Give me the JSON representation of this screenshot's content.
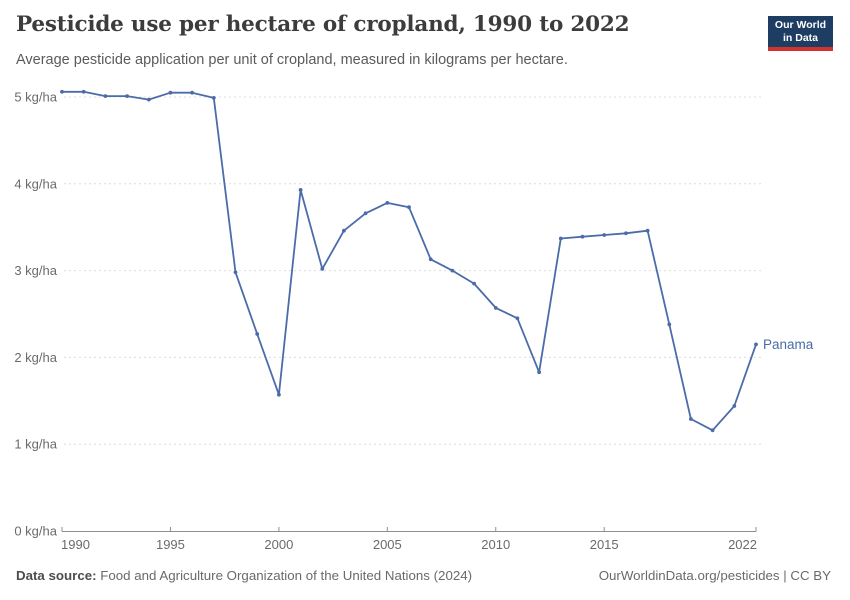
{
  "header": {
    "title": "Pesticide use per hectare of cropland, 1990 to 2022",
    "subtitle": "Average pesticide application per unit of cropland, measured in kilograms per hectare.",
    "logo": {
      "line1": "Our World",
      "line2": "in Data"
    }
  },
  "chart_data": {
    "type": "line",
    "title": "Pesticide use per hectare of cropland, 1990 to 2022",
    "xlabel": "",
    "ylabel": "kg/ha",
    "xlim": [
      1990,
      2022
    ],
    "ylim": [
      0,
      5
    ],
    "grid": "horizontal-dashed",
    "legend_position": "end-of-line-label",
    "x": [
      1990,
      1991,
      1992,
      1993,
      1994,
      1995,
      1996,
      1997,
      1998,
      1999,
      2000,
      2001,
      2002,
      2003,
      2004,
      2005,
      2006,
      2007,
      2008,
      2009,
      2010,
      2011,
      2012,
      2013,
      2014,
      2015,
      2016,
      2017,
      2018,
      2019,
      2020,
      2021,
      2022
    ],
    "series": [
      {
        "name": "Panama",
        "values": [
          5.06,
          5.06,
          5.01,
          5.01,
          4.97,
          5.05,
          5.05,
          4.99,
          2.98,
          2.27,
          1.57,
          3.93,
          3.02,
          3.46,
          3.66,
          3.78,
          3.73,
          3.13,
          3.0,
          2.85,
          2.57,
          2.45,
          1.83,
          3.37,
          3.39,
          3.41,
          3.43,
          3.46,
          2.38,
          1.29,
          1.16,
          1.44,
          2.15
        ]
      }
    ],
    "yticks": [
      {
        "value": 0,
        "label": "0 kg/ha"
      },
      {
        "value": 1,
        "label": "1 kg/ha"
      },
      {
        "value": 2,
        "label": "2 kg/ha"
      },
      {
        "value": 3,
        "label": "3 kg/ha"
      },
      {
        "value": 4,
        "label": "4 kg/ha"
      },
      {
        "value": 5,
        "label": "5 kg/ha"
      }
    ],
    "xticks": [
      {
        "value": 1990,
        "label": "1990"
      },
      {
        "value": 1995,
        "label": "1995"
      },
      {
        "value": 2000,
        "label": "2000"
      },
      {
        "value": 2005,
        "label": "2005"
      },
      {
        "value": 2010,
        "label": "2010"
      },
      {
        "value": 2015,
        "label": "2015"
      },
      {
        "value": 2022,
        "label": "2022"
      }
    ]
  },
  "footer": {
    "source_label": "Data source:",
    "source_text": "Food and Agriculture Organization of the United Nations (2024)",
    "attribution": "OurWorldinData.org/pesticides | CC BY"
  },
  "colors": {
    "line": "#4b6ca8",
    "series_label": "#4b6ca8",
    "grid": "#dcdcdc",
    "axis": "#8f8f8f",
    "tick_text": "#6b6b6b",
    "logo_bg": "#1d3d63",
    "logo_accent": "#d0342c"
  }
}
